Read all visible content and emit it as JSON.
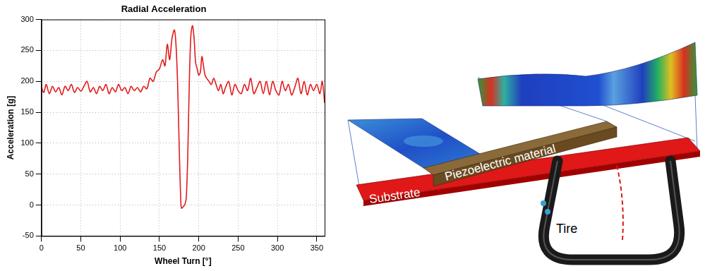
{
  "chart_data": {
    "type": "line",
    "title": "Radial Acceleration",
    "x_label": "Wheel Turn [°]",
    "y_label": "Acceleration [g]",
    "x": [
      0,
      3,
      6,
      10,
      14,
      18,
      22,
      26,
      30,
      34,
      38,
      42,
      46,
      50,
      54,
      58,
      62,
      66,
      70,
      74,
      78,
      82,
      86,
      90,
      94,
      98,
      102,
      106,
      110,
      114,
      118,
      122,
      126,
      130,
      134,
      138,
      142,
      146,
      150,
      154,
      157,
      160,
      163,
      166,
      169,
      171,
      173,
      175,
      177,
      178,
      180,
      182,
      184,
      186,
      188,
      190,
      192,
      194,
      196,
      198,
      200,
      202,
      204,
      206,
      208,
      210,
      213,
      216,
      219,
      222,
      225,
      228,
      231,
      234,
      238,
      242,
      246,
      250,
      254,
      258,
      262,
      266,
      270,
      274,
      278,
      282,
      286,
      290,
      294,
      298,
      302,
      306,
      310,
      314,
      318,
      322,
      326,
      330,
      334,
      338,
      342,
      346,
      350,
      354,
      357,
      360
    ],
    "series": [
      {
        "name": "Radial Acceleration",
        "color": "#e31a1c",
        "values": [
          190,
          182,
          195,
          180,
          192,
          183,
          190,
          178,
          192,
          185,
          195,
          182,
          190,
          184,
          192,
          200,
          183,
          190,
          180,
          192,
          185,
          195,
          180,
          190,
          183,
          195,
          185,
          190,
          180,
          192,
          185,
          190,
          183,
          192,
          188,
          205,
          200,
          215,
          220,
          235,
          225,
          260,
          235,
          270,
          283,
          260,
          200,
          100,
          10,
          -5,
          -3,
          0,
          10,
          80,
          200,
          275,
          290,
          270,
          230,
          220,
          210,
          215,
          240,
          225,
          210,
          205,
          200,
          195,
          205,
          195,
          185,
          195,
          180,
          190,
          200,
          178,
          195,
          185,
          180,
          195,
          185,
          205,
          180,
          190,
          200,
          180,
          200,
          178,
          200,
          185,
          178,
          200,
          185,
          195,
          178,
          190,
          205,
          180,
          200,
          178,
          195,
          185,
          195,
          180,
          200,
          165
        ]
      }
    ],
    "xlim": [
      0,
      360
    ],
    "xticks": [
      0,
      50,
      100,
      150,
      200,
      250,
      300,
      350
    ],
    "ylim": [
      -50,
      300
    ],
    "yticks": [
      -50,
      0,
      50,
      100,
      150,
      200,
      250,
      300
    ],
    "grid": true
  },
  "diagram": {
    "labels": {
      "substrate": "Substrate",
      "piezo": "Piezoelectric material",
      "tire": "Tire"
    }
  }
}
